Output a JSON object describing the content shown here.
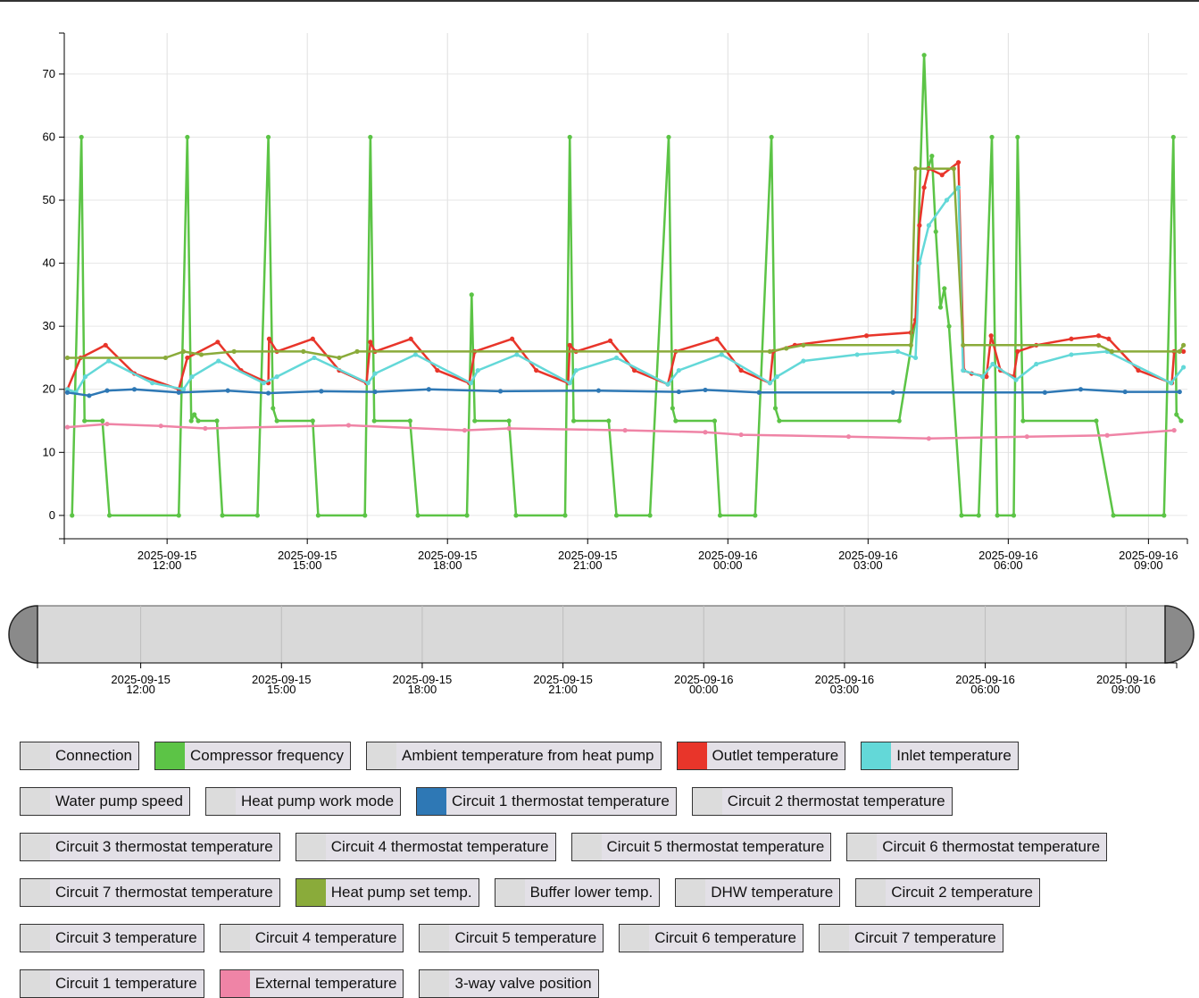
{
  "chart_data": {
    "type": "line",
    "xlim": [
      "2025-09-15 09:48",
      "2025-09-16 09:50"
    ],
    "ylim": [
      -3.7,
      76.5
    ],
    "yticks": [
      0,
      10,
      20,
      30,
      40,
      50,
      60,
      70
    ],
    "xticks": [
      {
        "value": "2025-09-15 12:00",
        "label": [
          "2025-09-15",
          "12:00"
        ]
      },
      {
        "value": "2025-09-15 15:00",
        "label": [
          "2025-09-15",
          "15:00"
        ]
      },
      {
        "value": "2025-09-15 18:00",
        "label": [
          "2025-09-15",
          "18:00"
        ]
      },
      {
        "value": "2025-09-15 21:00",
        "label": [
          "2025-09-15",
          "21:00"
        ]
      },
      {
        "value": "2025-09-16 00:00",
        "label": [
          "2025-09-16",
          "00:00"
        ]
      },
      {
        "value": "2025-09-16 03:00",
        "label": [
          "2025-09-16",
          "03:00"
        ]
      },
      {
        "value": "2025-09-16 06:00",
        "label": [
          "2025-09-16",
          "06:00"
        ]
      },
      {
        "value": "2025-09-16 09:00",
        "label": [
          "2025-09-16",
          "09:00"
        ]
      }
    ],
    "grid": true,
    "series": [
      {
        "name": "Connection"
      },
      {
        "name": "Compressor frequency",
        "color": "#5cc446",
        "x": [
          "2025-09-15 09:58",
          "2025-09-15 10:10",
          "2025-09-15 10:14",
          "2025-09-15 10:37",
          "2025-09-15 10:46",
          "2025-09-15 12:15",
          "2025-09-15 12:26",
          "2025-09-15 12:31",
          "2025-09-15 12:35",
          "2025-09-15 12:40",
          "2025-09-15 13:04",
          "2025-09-15 13:11",
          "2025-09-15 13:56",
          "2025-09-15 14:10",
          "2025-09-15 14:16",
          "2025-09-15 14:21",
          "2025-09-15 15:07",
          "2025-09-15 15:14",
          "2025-09-15 16:14",
          "2025-09-15 16:21",
          "2025-09-15 16:26",
          "2025-09-15 17:12",
          "2025-09-15 17:22",
          "2025-09-15 18:25",
          "2025-09-15 18:31",
          "2025-09-15 18:35",
          "2025-09-15 19:19",
          "2025-09-15 19:28",
          "2025-09-15 20:31",
          "2025-09-15 20:37",
          "2025-09-15 20:42",
          "2025-09-15 21:27",
          "2025-09-15 21:37",
          "2025-09-15 22:20",
          "2025-09-15 22:44",
          "2025-09-15 22:49",
          "2025-09-15 22:53",
          "2025-09-15 23:43",
          "2025-09-15 23:50",
          "2025-09-16 00:35",
          "2025-09-16 00:56",
          "2025-09-16 01:01",
          "2025-09-16 01:06",
          "2025-09-16 03:40",
          "2025-09-16 04:01",
          "2025-09-16 04:12",
          "2025-09-16 04:17",
          "2025-09-16 04:22",
          "2025-09-16 04:27",
          "2025-09-16 04:33",
          "2025-09-16 04:38",
          "2025-09-16 04:44",
          "2025-09-16 05:00",
          "2025-09-16 05:22",
          "2025-09-16 05:39",
          "2025-09-16 05:46",
          "2025-09-16 06:07",
          "2025-09-16 06:12",
          "2025-09-16 06:19",
          "2025-09-16 07:53",
          "2025-09-16 08:15",
          "2025-09-16 09:20",
          "2025-09-16 09:32",
          "2025-09-16 09:36",
          "2025-09-16 09:42"
        ],
        "values": [
          0,
          60,
          15,
          15,
          0,
          0,
          60,
          15,
          16,
          15,
          15,
          0,
          0,
          60,
          17,
          15,
          15,
          0,
          0,
          60,
          15,
          15,
          0,
          0,
          35,
          15,
          15,
          0,
          0,
          60,
          15,
          15,
          0,
          0,
          60,
          17,
          15,
          15,
          0,
          0,
          60,
          17,
          15,
          15,
          31,
          73,
          55,
          57,
          45,
          33,
          36,
          30,
          0,
          0,
          60,
          0,
          0,
          60,
          15,
          15,
          0,
          0,
          60,
          16,
          15
        ]
      },
      {
        "name": "Ambient temperature from heat pump"
      },
      {
        "name": "Outlet temperature",
        "color": "#e8352a",
        "x": [
          "2025-09-15 09:52",
          "2025-09-15 10:09",
          "2025-09-15 10:41",
          "2025-09-15 11:18",
          "2025-09-15 12:15",
          "2025-09-15 12:26",
          "2025-09-15 13:05",
          "2025-09-15 13:35",
          "2025-09-15 14:10",
          "2025-09-15 14:11",
          "2025-09-15 14:21",
          "2025-09-15 15:07",
          "2025-09-15 15:41",
          "2025-09-15 16:16",
          "2025-09-15 16:21",
          "2025-09-15 16:27",
          "2025-09-15 17:13",
          "2025-09-15 17:47",
          "2025-09-15 18:28",
          "2025-09-15 18:35",
          "2025-09-15 19:23",
          "2025-09-15 19:54",
          "2025-09-15 20:35",
          "2025-09-15 20:37",
          "2025-09-15 20:45",
          "2025-09-15 21:29",
          "2025-09-15 22:00",
          "2025-09-15 22:43",
          "2025-09-15 22:53",
          "2025-09-15 23:46",
          "2025-09-16 00:17",
          "2025-09-16 00:54",
          "2025-09-16 00:58",
          "2025-09-16 01:26",
          "2025-09-16 02:58",
          "2025-09-16 03:55",
          "2025-09-16 04:01",
          "2025-09-16 04:06",
          "2025-09-16 04:12",
          "2025-09-16 04:18",
          "2025-09-16 04:35",
          "2025-09-16 04:56",
          "2025-09-16 05:03",
          "2025-09-16 05:13",
          "2025-09-16 05:32",
          "2025-09-16 05:38",
          "2025-09-16 05:50",
          "2025-09-16 06:07",
          "2025-09-16 06:12",
          "2025-09-16 06:36",
          "2025-09-16 07:21",
          "2025-09-16 07:56",
          "2025-09-16 08:09",
          "2025-09-16 08:47",
          "2025-09-16 09:30",
          "2025-09-16 09:33",
          "2025-09-16 09:45"
        ],
        "values": [
          20,
          25,
          27,
          22.5,
          20,
          25,
          27.5,
          23,
          21,
          28,
          26,
          28,
          23,
          21,
          27.5,
          26,
          28,
          23,
          21,
          26,
          28,
          23,
          21,
          27,
          26,
          27.7,
          23,
          20.8,
          26,
          28,
          23,
          21,
          26,
          27,
          28.5,
          29,
          31,
          46,
          52,
          55,
          54,
          56,
          23,
          22.5,
          22,
          28.5,
          23,
          22,
          26,
          27,
          28,
          28.5,
          28,
          23,
          21,
          26,
          26
        ]
      },
      {
        "name": "Inlet temperature",
        "color": "#63d8d8",
        "x": [
          "2025-09-15 09:52",
          "2025-09-15 10:03",
          "2025-09-15 10:15",
          "2025-09-15 10:45",
          "2025-09-15 11:41",
          "2025-09-15 12:21",
          "2025-09-15 12:32",
          "2025-09-15 13:06",
          "2025-09-15 14:04",
          "2025-09-15 14:21",
          "2025-09-15 15:09",
          "2025-09-15 16:18",
          "2025-09-15 16:27",
          "2025-09-15 17:19",
          "2025-09-15 18:30",
          "2025-09-15 18:39",
          "2025-09-15 19:29",
          "2025-09-15 20:37",
          "2025-09-15 20:45",
          "2025-09-15 21:37",
          "2025-09-15 22:43",
          "2025-09-15 22:57",
          "2025-09-15 23:52",
          "2025-09-16 00:54",
          "2025-09-16 01:03",
          "2025-09-16 01:37",
          "2025-09-16 02:46",
          "2025-09-16 03:38",
          "2025-09-16 04:01",
          "2025-09-16 04:06",
          "2025-09-16 04:18",
          "2025-09-16 04:41",
          "2025-09-16 04:56",
          "2025-09-16 05:02",
          "2025-09-16 05:27",
          "2025-09-16 05:40",
          "2025-09-16 06:10",
          "2025-09-16 06:36",
          "2025-09-16 07:21",
          "2025-09-16 08:07",
          "2025-09-16 09:29",
          "2025-09-16 09:45"
        ],
        "values": [
          20,
          19.5,
          22,
          24.5,
          21,
          20,
          22,
          24.5,
          21,
          22,
          25,
          21,
          22.5,
          25.5,
          21,
          23,
          25.5,
          21,
          23,
          25,
          20.8,
          23,
          25.5,
          21,
          22,
          24.5,
          25.5,
          26,
          25,
          40,
          46,
          50,
          52,
          23,
          22,
          24,
          21.5,
          24,
          25.5,
          26,
          21,
          23.5
        ]
      },
      {
        "name": "Water pump speed"
      },
      {
        "name": "Heat pump work mode"
      },
      {
        "name": "Circuit 1 thermostat temperature",
        "color": "#2e78b5",
        "x": [
          "2025-09-15 09:52",
          "2025-09-15 10:20",
          "2025-09-15 10:43",
          "2025-09-15 11:18",
          "2025-09-15 12:15",
          "2025-09-15 13:18",
          "2025-09-15 14:10",
          "2025-09-15 15:18",
          "2025-09-15 16:27",
          "2025-09-15 17:36",
          "2025-09-15 19:08",
          "2025-09-15 21:14",
          "2025-09-15 22:57",
          "2025-09-15 23:31",
          "2025-09-16 00:40",
          "2025-09-16 03:32",
          "2025-09-16 06:47",
          "2025-09-16 07:33",
          "2025-09-16 08:30",
          "2025-09-16 09:40"
        ],
        "values": [
          19.5,
          19,
          19.8,
          20,
          19.5,
          19.8,
          19.4,
          19.7,
          19.6,
          20,
          19.7,
          19.8,
          19.6,
          19.9,
          19.5,
          19.5,
          19.5,
          20,
          19.6,
          19.6
        ]
      },
      {
        "name": "Circuit 2 thermostat temperature"
      },
      {
        "name": "Circuit 3 thermostat temperature"
      },
      {
        "name": "Circuit 4 thermostat temperature"
      },
      {
        "name": "Circuit 5 thermostat temperature"
      },
      {
        "name": "Circuit 6 thermostat temperature"
      },
      {
        "name": "Circuit 7 thermostat temperature"
      },
      {
        "name": "Heat pump set temp.",
        "color": "#8aab3a",
        "x": [
          "2025-09-15 09:52",
          "2025-09-15 11:58",
          "2025-09-15 12:21",
          "2025-09-15 12:44",
          "2025-09-15 13:26",
          "2025-09-15 14:55",
          "2025-09-15 15:41",
          "2025-09-15 16:04",
          "2025-09-16 00:54",
          "2025-09-16 01:15",
          "2025-09-16 01:37",
          "2025-09-16 03:55",
          "2025-09-16 04:01",
          "2025-09-16 04:50",
          "2025-09-16 05:02",
          "2025-09-16 07:56",
          "2025-09-16 08:13",
          "2025-09-16 09:40",
          "2025-09-16 09:45"
        ],
        "values": [
          25,
          25,
          26,
          25.5,
          26,
          26,
          25,
          26,
          26,
          26.5,
          27,
          27,
          55,
          55,
          27,
          27,
          26,
          26,
          27
        ]
      },
      {
        "name": "Buffer lower temp."
      },
      {
        "name": "DHW temperature"
      },
      {
        "name": "Circuit 2 temperature"
      },
      {
        "name": "Circuit 3 temperature"
      },
      {
        "name": "Circuit 4 temperature"
      },
      {
        "name": "Circuit 5 temperature"
      },
      {
        "name": "Circuit 6 temperature"
      },
      {
        "name": "Circuit 7 temperature"
      },
      {
        "name": "Circuit 1 temperature"
      },
      {
        "name": "External temperature",
        "color": "#ef84a6",
        "x": [
          "2025-09-15 09:52",
          "2025-09-15 10:43",
          "2025-09-15 11:52",
          "2025-09-15 12:49",
          "2025-09-15 15:53",
          "2025-09-15 18:22",
          "2025-09-15 19:19",
          "2025-09-15 21:48",
          "2025-09-15 23:31",
          "2025-09-16 00:17",
          "2025-09-16 02:35",
          "2025-09-16 04:18",
          "2025-09-16 06:24",
          "2025-09-16 08:07",
          "2025-09-16 09:33"
        ],
        "values": [
          14,
          14.5,
          14.2,
          13.8,
          14.3,
          13.5,
          13.8,
          13.5,
          13.2,
          12.8,
          12.5,
          12.2,
          12.5,
          12.7,
          13.5
        ]
      },
      {
        "name": "3-way valve position"
      }
    ]
  }
}
